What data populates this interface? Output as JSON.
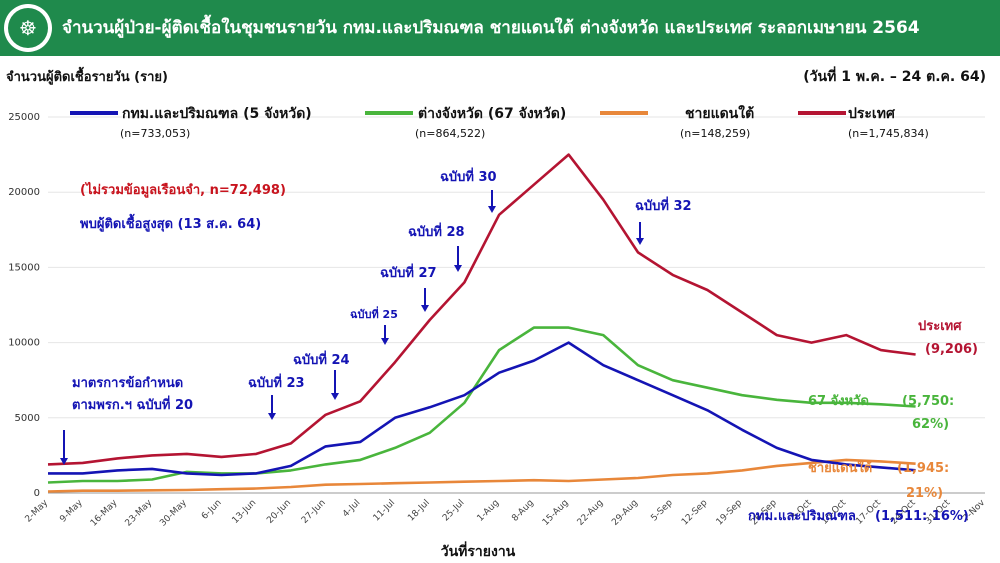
{
  "header": {
    "title": "จำนวนผู้ป่วย-ผู้ติดเชื้อในชุมชนรายวัน กทม.และปริมณฑล ชายแดนใต้ ต่างจังหวัด และประเทศ ระลอกเมษายน 2564",
    "logo_icon": "moph-logo-icon"
  },
  "subtitle": "จำนวนผู้ติดเชื้อรายวัน (ราย)",
  "date_range": "(วันที่ 1 พ.ค. – 24 ต.ค. 64)",
  "legend": [
    {
      "label": "กทม.และปริมณฑล (5 จังหวัด)",
      "n": "(n=733,053)",
      "color": "#1414b4"
    },
    {
      "label": "ต่างจังหวัด (67 จังหวัด)",
      "n": "(n=864,522)",
      "color": "#49b53c"
    },
    {
      "label": "ชายแดนใต้",
      "n": "(n=148,259)",
      "color": "#e8873a"
    },
    {
      "label": "ประเทศ",
      "n": "(n=1,745,834)",
      "color": "#b41432"
    }
  ],
  "notes": {
    "excl_prison": "(ไม่รวมข้อมูลเรือนจำ, n=72,498)",
    "peak": "พบผู้ติดเชื้อสูงสุด (13 ส.ค. 64)"
  },
  "announcements": [
    {
      "id": "a20",
      "line1": "มาตรการข้อกำหนด",
      "line2": "ตามพรก.ฯ ฉบับที่ 20"
    },
    {
      "id": "a23",
      "line1": "ฉบับที่ 23"
    },
    {
      "id": "a24",
      "line1": "ฉบับที่ 24"
    },
    {
      "id": "a25",
      "line1": "ฉบับที่ 25"
    },
    {
      "id": "a27",
      "line1": "ฉบับที่ 27"
    },
    {
      "id": "a28",
      "line1": "ฉบับที่ 28"
    },
    {
      "id": "a30",
      "line1": "ฉบับที่ 30"
    },
    {
      "id": "a32",
      "line1": "ฉบับที่ 32"
    }
  ],
  "end_labels": {
    "country": "ประเทศ",
    "country_val": "(9,206)",
    "upc": "67 จังหวัด",
    "upc_val1": "(5,750:",
    "upc_val2": "62%)",
    "south": "ชายแดนใต้",
    "south_val1": "(1,945:",
    "south_val2": "21%)",
    "bkk": "กทม.และปริมณฑล",
    "bkk_val": "(1,511: 16%)"
  },
  "chart_data": {
    "type": "line",
    "xlabel": "วันที่รายงาน",
    "ylabel": "",
    "ylim": [
      0,
      25000
    ],
    "yticks": [
      0,
      5000,
      10000,
      15000,
      20000,
      25000
    ],
    "xticks": [
      "2-May",
      "9-May",
      "16-May",
      "23-May",
      "30-May",
      "6-Jun",
      "13-Jun",
      "20-Jun",
      "27-Jun",
      "4-Jul",
      "11-Jul",
      "18-Jul",
      "25-Jul",
      "1-Aug",
      "8-Aug",
      "15-Aug",
      "22-Aug",
      "29-Aug",
      "5-Sep",
      "12-Sep",
      "19-Sep",
      "26-Sep",
      "3-Oct",
      "10-Oct",
      "17-Oct",
      "24-Oct",
      "31-Oct",
      "7-Nov"
    ],
    "x": [
      "2-May",
      "9-May",
      "16-May",
      "23-May",
      "30-May",
      "6-Jun",
      "13-Jun",
      "20-Jun",
      "27-Jun",
      "4-Jul",
      "11-Jul",
      "18-Jul",
      "25-Jul",
      "1-Aug",
      "8-Aug",
      "15-Aug",
      "22-Aug",
      "29-Aug",
      "5-Sep",
      "12-Sep",
      "19-Sep",
      "26-Sep",
      "3-Oct",
      "10-Oct",
      "17-Oct",
      "24-Oct"
    ],
    "series": [
      {
        "name": "ประเทศ",
        "color": "#b41432",
        "values": [
          1900,
          2000,
          2300,
          2500,
          2600,
          2400,
          2600,
          3300,
          5200,
          6100,
          8700,
          11500,
          14000,
          18500,
          20500,
          22500,
          19500,
          16000,
          14500,
          13500,
          12000,
          10500,
          10000,
          10500,
          9500,
          9206
        ]
      },
      {
        "name": "ต่างจังหวัด",
        "color": "#49b53c",
        "values": [
          700,
          800,
          800,
          900,
          1400,
          1300,
          1300,
          1500,
          1900,
          2200,
          3000,
          4000,
          6000,
          9500,
          11000,
          11000,
          10500,
          8500,
          7500,
          7000,
          6500,
          6200,
          6000,
          6000,
          5900,
          5750
        ]
      },
      {
        "name": "ชายแดนใต้",
        "color": "#e8873a",
        "values": [
          100,
          150,
          150,
          180,
          200,
          250,
          300,
          400,
          550,
          600,
          650,
          700,
          750,
          800,
          850,
          800,
          900,
          1000,
          1200,
          1300,
          1500,
          1800,
          2000,
          2200,
          2100,
          1945
        ]
      },
      {
        "name": "กทม.และปริมณฑล",
        "color": "#1414b4",
        "values": [
          1300,
          1300,
          1500,
          1600,
          1300,
          1200,
          1300,
          1800,
          3100,
          3400,
          5000,
          5700,
          6500,
          8000,
          8800,
          10000,
          8500,
          7500,
          6500,
          5500,
          4200,
          3000,
          2200,
          1900,
          1700,
          1511
        ]
      }
    ]
  }
}
